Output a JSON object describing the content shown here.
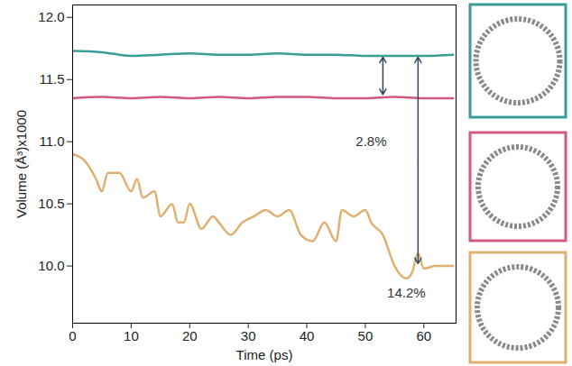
{
  "chart_data": {
    "type": "line",
    "x_label": "Time (ps)",
    "y_label": "Volume (Å³)x1000",
    "xlim": [
      0,
      65.5
    ],
    "xticks": [
      0,
      10,
      20,
      30,
      40,
      50,
      60
    ],
    "ylim": [
      9.54,
      12.1
    ],
    "yticks": [
      {
        "value": 10,
        "label": "10.0"
      },
      10.5,
      {
        "value": 11,
        "label": "11.0"
      },
      11.5,
      {
        "value": 12,
        "label": "12.0"
      }
    ],
    "grid": false,
    "series": [
      {
        "color": "#3a9e98",
        "x": [
          0,
          5,
          10,
          15,
          20,
          25,
          30,
          35,
          40,
          45,
          50,
          55,
          60,
          65
        ],
        "values": [
          11.73,
          11.72,
          11.69,
          11.7,
          11.71,
          11.7,
          11.7,
          11.71,
          11.7,
          11.7,
          11.69,
          11.69,
          11.69,
          11.7
        ]
      },
      {
        "color": "#d05a80",
        "x": [
          0,
          5,
          10,
          15,
          20,
          25,
          30,
          35,
          40,
          45,
          50,
          55,
          60,
          65
        ],
        "values": [
          11.35,
          11.36,
          11.35,
          11.36,
          11.35,
          11.36,
          11.35,
          11.36,
          11.36,
          11.35,
          11.35,
          11.36,
          11.35,
          11.35
        ]
      },
      {
        "color": "#e0b070",
        "x": [
          0,
          2,
          4,
          5,
          6,
          8,
          10,
          11,
          12,
          14,
          15,
          17,
          18,
          19,
          20,
          22,
          24,
          25,
          27,
          29,
          31,
          33,
          35,
          37,
          39,
          41,
          43,
          45,
          46,
          48,
          50,
          51,
          53,
          55,
          57,
          58,
          59,
          60,
          62,
          64,
          65
        ],
        "values": [
          10.9,
          10.85,
          10.7,
          10.6,
          10.75,
          10.75,
          10.6,
          10.7,
          10.55,
          10.6,
          10.4,
          10.5,
          10.35,
          10.35,
          10.5,
          10.3,
          10.4,
          10.35,
          10.25,
          10.35,
          10.4,
          10.45,
          10.4,
          10.45,
          10.25,
          10.2,
          10.35,
          10.2,
          10.45,
          10.4,
          10.45,
          10.35,
          10.25,
          10.0,
          9.9,
          9.95,
          10.1,
          9.98,
          10.0,
          10.0,
          10.0
        ]
      }
    ],
    "annotations": [
      {
        "text": "2.8%",
        "x": 51,
        "y": 11.0
      },
      {
        "text": "14.2%",
        "x": 57,
        "y": 9.78
      }
    ],
    "arrows": [
      {
        "x": 53,
        "y1": 11.68,
        "y2": 11.38
      },
      {
        "x": 59,
        "y1": 11.68,
        "y2": 10.02
      }
    ]
  }
}
